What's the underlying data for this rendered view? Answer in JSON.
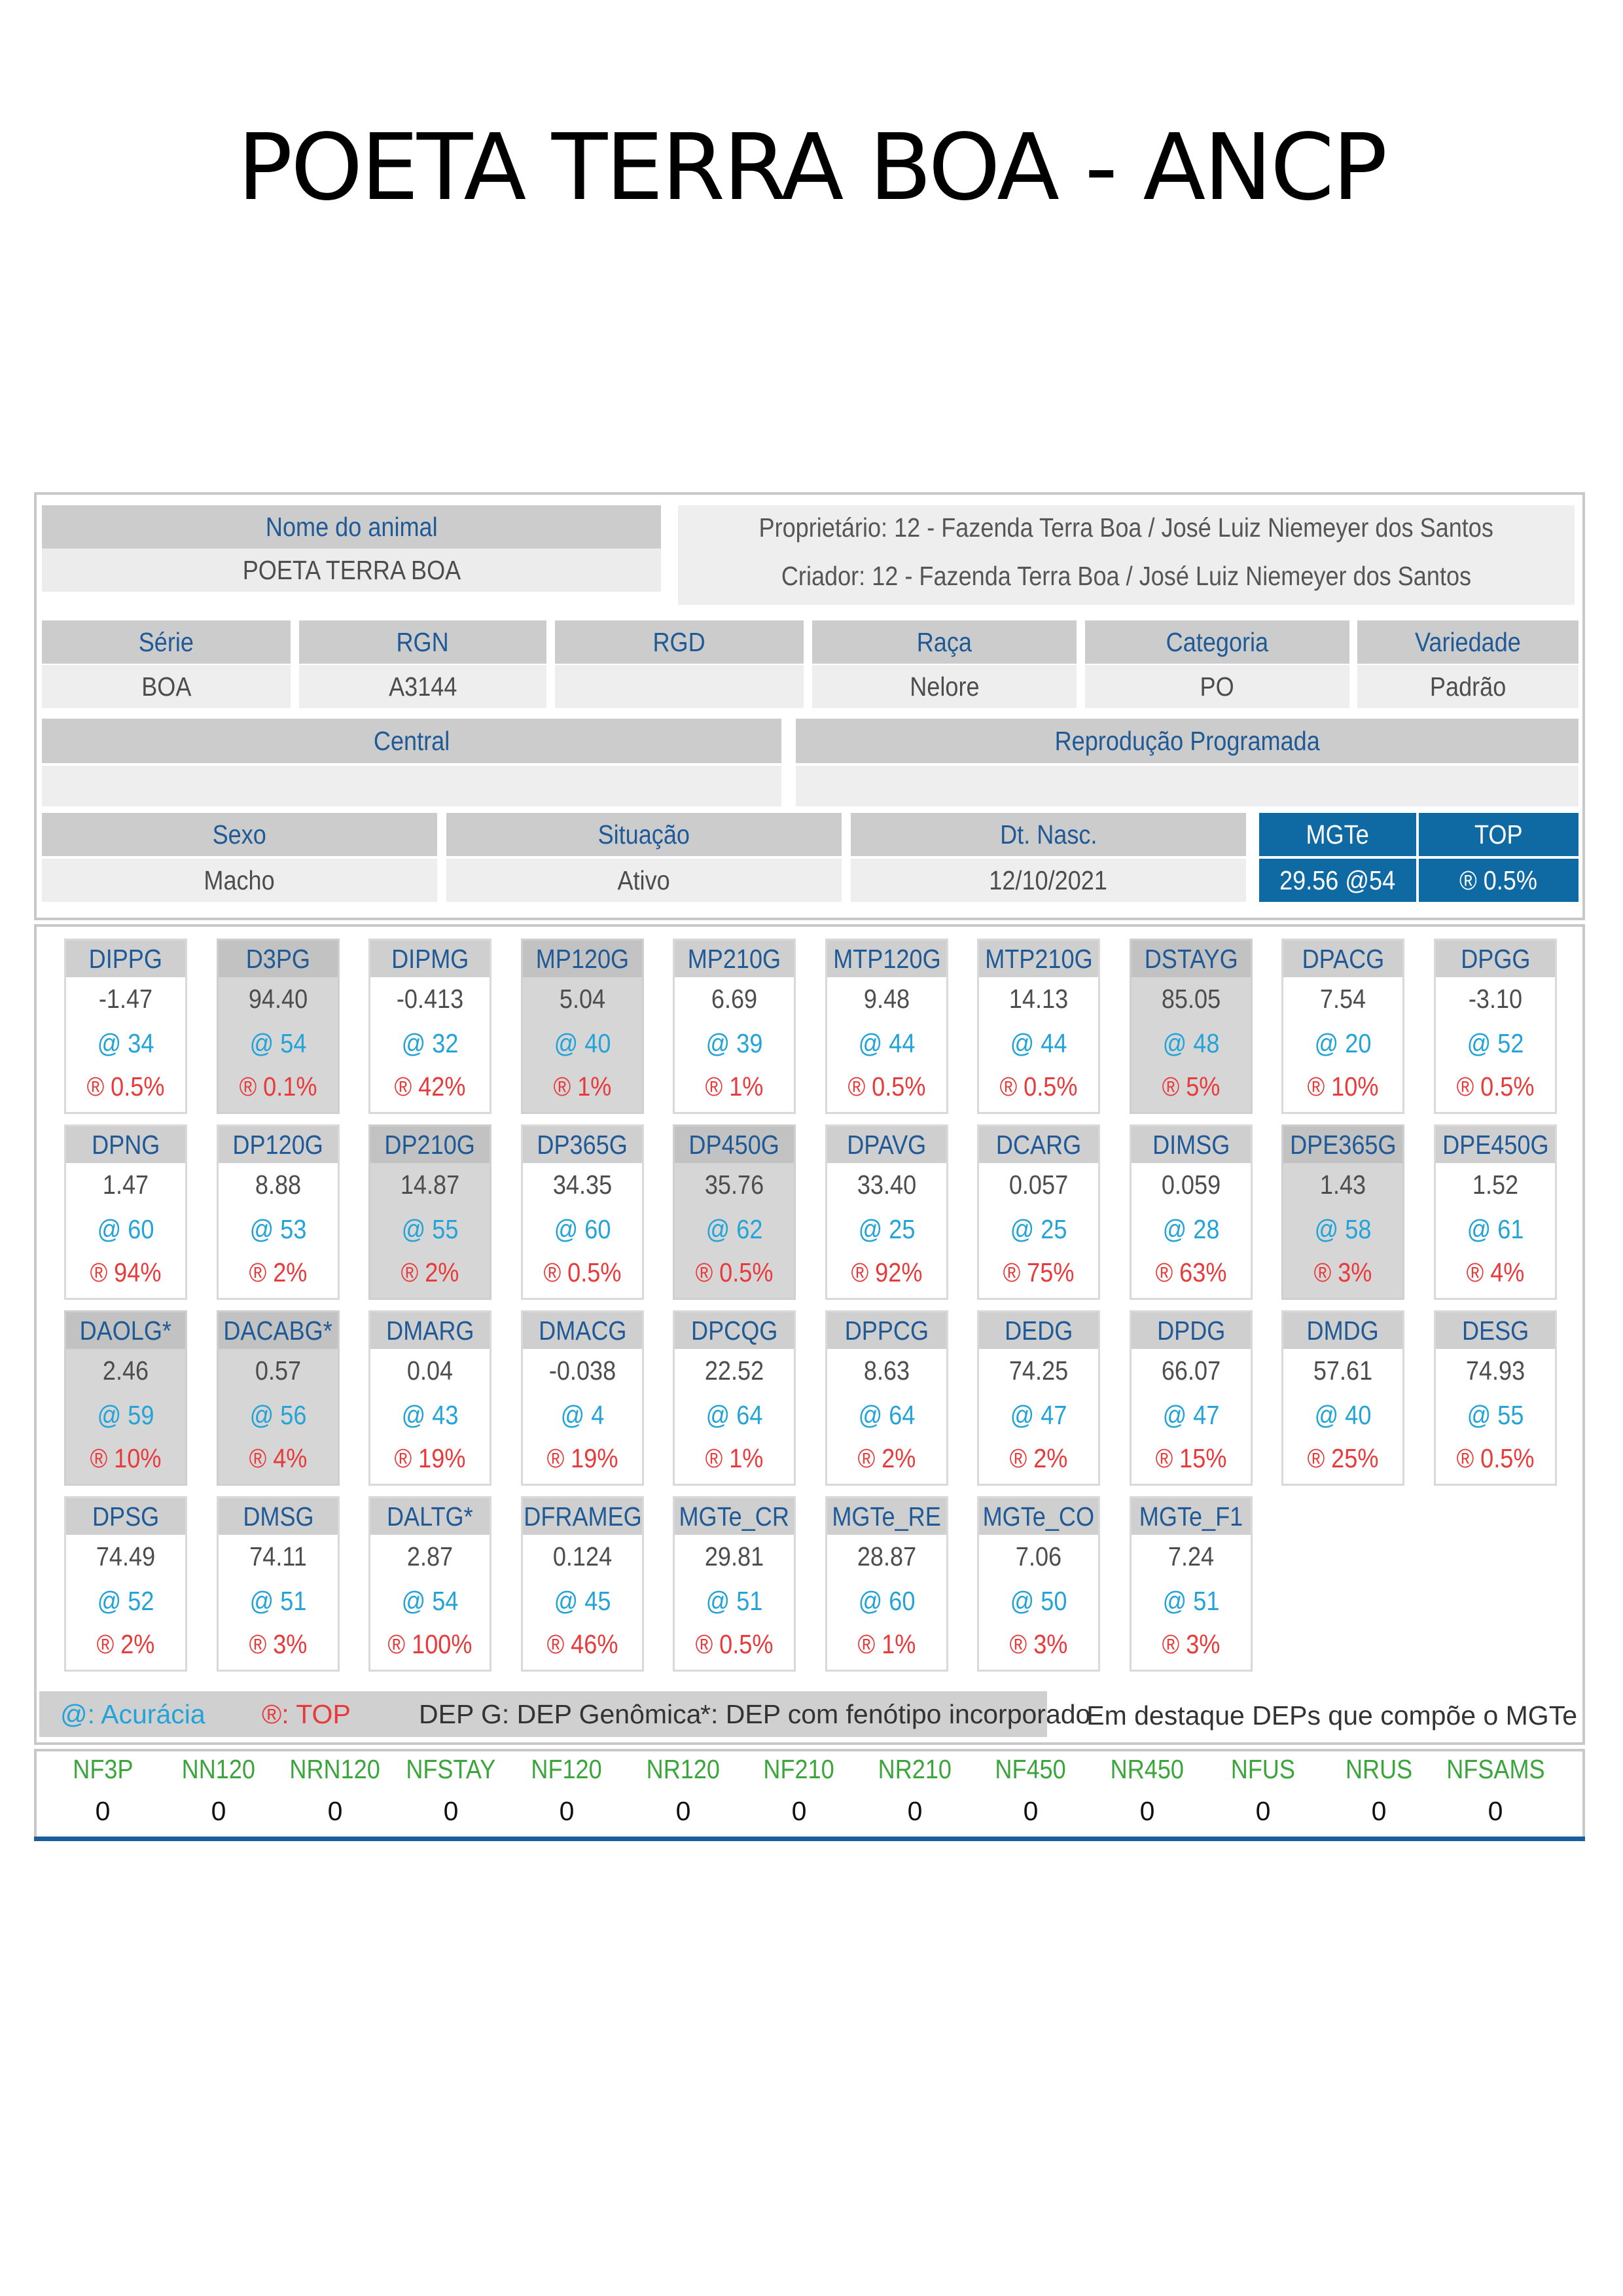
{
  "title": "POETA TERRA BOA - ANCP",
  "animal": {
    "name_label": "Nome do animal",
    "name_value": "POETA TERRA BOA",
    "owner": "Proprietário: 12 - Fazenda Terra Boa / José Luiz Niemeyer dos Santos",
    "breeder": "Criador: 12 - Fazenda Terra Boa / José Luiz Niemeyer dos Santos"
  },
  "row2": [
    {
      "label": "Série",
      "value": "BOA"
    },
    {
      "label": "RGN",
      "value": "A3144"
    },
    {
      "label": "RGD",
      "value": ""
    },
    {
      "label": "Raça",
      "value": "Nelore"
    },
    {
      "label": "Categoria",
      "value": "PO"
    },
    {
      "label": "Variedade",
      "value": "Padrão"
    }
  ],
  "row3": [
    {
      "label": "Central",
      "value": ""
    },
    {
      "label": "Reprodução Programada",
      "value": ""
    }
  ],
  "row4": [
    {
      "label": "Sexo",
      "value": "Macho"
    },
    {
      "label": "Situação",
      "value": "Ativo"
    },
    {
      "label": "Dt. Nasc.",
      "value": "12/10/2021"
    }
  ],
  "mgte": {
    "label": "MGTe",
    "value": "29.56  @54"
  },
  "top": {
    "label": "TOP",
    "value": "® 0.5%"
  },
  "deps": [
    {
      "name": "DIPPG",
      "value": "-1.47",
      "acc": "@ 34",
      "top": "® 0.5%",
      "hl": false
    },
    {
      "name": "D3PG",
      "value": "94.40",
      "acc": "@ 54",
      "top": "® 0.1%",
      "hl": true
    },
    {
      "name": "DIPMG",
      "value": "-0.413",
      "acc": "@ 32",
      "top": "® 42%",
      "hl": false
    },
    {
      "name": "MP120G",
      "value": "5.04",
      "acc": "@ 40",
      "top": "® 1%",
      "hl": true
    },
    {
      "name": "MP210G",
      "value": "6.69",
      "acc": "@ 39",
      "top": "® 1%",
      "hl": false
    },
    {
      "name": "MTP120G",
      "value": "9.48",
      "acc": "@ 44",
      "top": "® 0.5%",
      "hl": false
    },
    {
      "name": "MTP210G",
      "value": "14.13",
      "acc": "@ 44",
      "top": "® 0.5%",
      "hl": false
    },
    {
      "name": "DSTAYG",
      "value": "85.05",
      "acc": "@ 48",
      "top": "® 5%",
      "hl": true
    },
    {
      "name": "DPACG",
      "value": "7.54",
      "acc": "@ 20",
      "top": "® 10%",
      "hl": false
    },
    {
      "name": "DPGG",
      "value": "-3.10",
      "acc": "@ 52",
      "top": "® 0.5%",
      "hl": false
    },
    {
      "name": "DPNG",
      "value": "1.47",
      "acc": "@ 60",
      "top": "® 94%",
      "hl": false
    },
    {
      "name": "DP120G",
      "value": "8.88",
      "acc": "@ 53",
      "top": "® 2%",
      "hl": false
    },
    {
      "name": "DP210G",
      "value": "14.87",
      "acc": "@ 55",
      "top": "® 2%",
      "hl": true
    },
    {
      "name": "DP365G",
      "value": "34.35",
      "acc": "@ 60",
      "top": "® 0.5%",
      "hl": false
    },
    {
      "name": "DP450G",
      "value": "35.76",
      "acc": "@ 62",
      "top": "® 0.5%",
      "hl": true
    },
    {
      "name": "DPAVG",
      "value": "33.40",
      "acc": "@ 25",
      "top": "® 92%",
      "hl": false
    },
    {
      "name": "DCARG",
      "value": "0.057",
      "acc": "@ 25",
      "top": "® 75%",
      "hl": false
    },
    {
      "name": "DIMSG",
      "value": "0.059",
      "acc": "@ 28",
      "top": "® 63%",
      "hl": false
    },
    {
      "name": "DPE365G",
      "value": "1.43",
      "acc": "@ 58",
      "top": "® 3%",
      "hl": true
    },
    {
      "name": "DPE450G",
      "value": "1.52",
      "acc": "@ 61",
      "top": "® 4%",
      "hl": false
    },
    {
      "name": "DAOLG*",
      "value": "2.46",
      "acc": "@ 59",
      "top": "® 10%",
      "hl": true
    },
    {
      "name": "DACABG*",
      "value": "0.57",
      "acc": "@ 56",
      "top": "® 4%",
      "hl": true
    },
    {
      "name": "DMARG",
      "value": "0.04",
      "acc": "@ 43",
      "top": "® 19%",
      "hl": false
    },
    {
      "name": "DMACG",
      "value": "-0.038",
      "acc": "@ 4",
      "top": "® 19%",
      "hl": false
    },
    {
      "name": "DPCQG",
      "value": "22.52",
      "acc": "@ 64",
      "top": "® 1%",
      "hl": false
    },
    {
      "name": "DPPCG",
      "value": "8.63",
      "acc": "@ 64",
      "top": "® 2%",
      "hl": false
    },
    {
      "name": "DEDG",
      "value": "74.25",
      "acc": "@ 47",
      "top": "® 2%",
      "hl": false
    },
    {
      "name": "DPDG",
      "value": "66.07",
      "acc": "@ 47",
      "top": "® 15%",
      "hl": false
    },
    {
      "name": "DMDG",
      "value": "57.61",
      "acc": "@ 40",
      "top": "® 25%",
      "hl": false
    },
    {
      "name": "DESG",
      "value": "74.93",
      "acc": "@ 55",
      "top": "® 0.5%",
      "hl": false
    },
    {
      "name": "DPSG",
      "value": "74.49",
      "acc": "@ 52",
      "top": "® 2%",
      "hl": false
    },
    {
      "name": "DMSG",
      "value": "74.11",
      "acc": "@ 51",
      "top": "® 3%",
      "hl": false
    },
    {
      "name": "DALTG*",
      "value": "2.87",
      "acc": "@ 54",
      "top": "® 100%",
      "hl": false
    },
    {
      "name": "DFRAMEG",
      "value": "0.124",
      "acc": "@ 45",
      "top": "® 46%",
      "hl": false
    },
    {
      "name": "MGTe_CR",
      "value": "29.81",
      "acc": "@ 51",
      "top": "® 0.5%",
      "hl": false
    },
    {
      "name": "MGTe_RE",
      "value": "28.87",
      "acc": "@ 60",
      "top": "® 1%",
      "hl": false
    },
    {
      "name": "MGTe_CO",
      "value": "7.06",
      "acc": "@ 50",
      "top": "® 3%",
      "hl": false
    },
    {
      "name": "MGTe_F1",
      "value": "7.24",
      "acc": "@ 51",
      "top": "® 3%",
      "hl": false
    }
  ],
  "legend": {
    "accuracy": "@: Acurácia",
    "top": "®: TOP",
    "dep_g": "DEP G: DEP Genômica",
    "phenotype": "*: DEP com fenótipo incorporado",
    "highlight": "Em destaque DEPs que compõe o MGTe"
  },
  "nf": [
    {
      "label": "NF3P",
      "value": "0"
    },
    {
      "label": "NN120",
      "value": "0"
    },
    {
      "label": "NRN120",
      "value": "0"
    },
    {
      "label": "NFSTAY",
      "value": "0"
    },
    {
      "label": "NF120",
      "value": "0"
    },
    {
      "label": "NR120",
      "value": "0"
    },
    {
      "label": "NF210",
      "value": "0"
    },
    {
      "label": "NR210",
      "value": "0"
    },
    {
      "label": "NF450",
      "value": "0"
    },
    {
      "label": "NR450",
      "value": "0"
    },
    {
      "label": "NFUS",
      "value": "0"
    },
    {
      "label": "NRUS",
      "value": "0"
    },
    {
      "label": "NFSAMS",
      "value": "0"
    }
  ]
}
